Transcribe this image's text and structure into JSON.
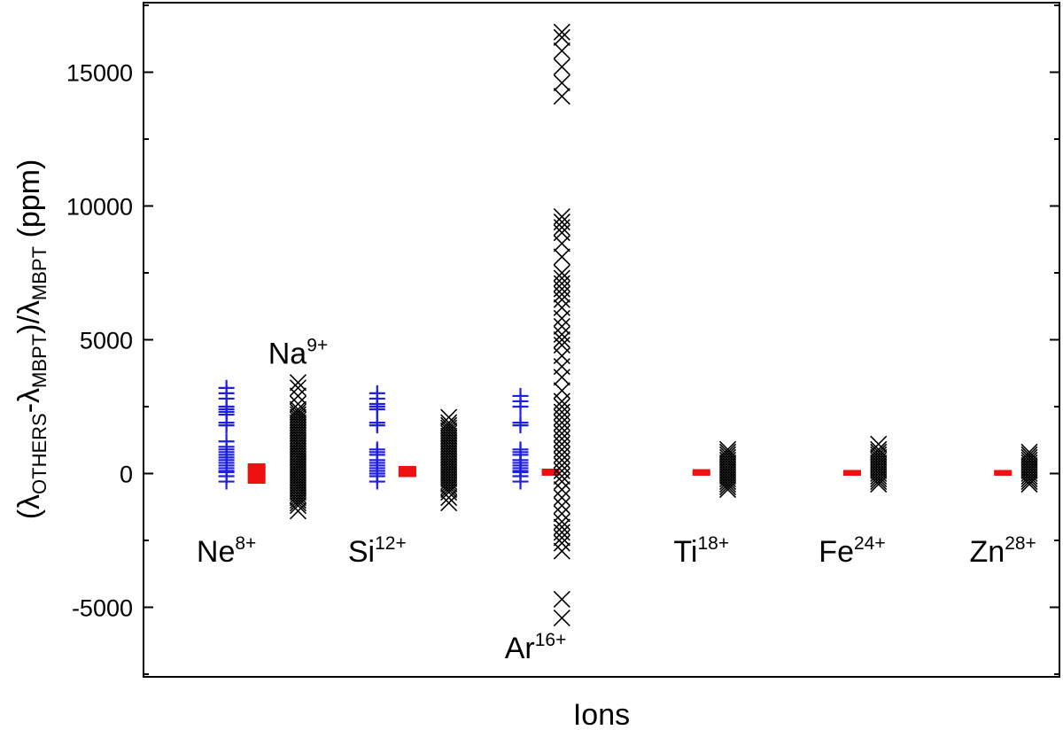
{
  "chart_data": {
    "type": "scatter",
    "title": "",
    "xlabel": "Ions",
    "ylabel": {
      "open": "(",
      "lambda": "λ",
      "sub_others": "OTHERS",
      "minus": "-",
      "sub_mbpt": "MBPT",
      "close_div": ")/",
      "unit": " (ppm)"
    },
    "ylim": [
      -7600,
      17600
    ],
    "yticks": [
      -5000,
      0,
      5000,
      10000,
      15000
    ],
    "ytick_labels": [
      "-5000",
      "0",
      "5000",
      "10000",
      "15000"
    ],
    "x_ticks": false,
    "grid": false,
    "legend": "none",
    "ion_labels": [
      {
        "id": "ne",
        "base": "Ne",
        "sup": "8+",
        "x": 1.1,
        "y": -2900
      },
      {
        "id": "na",
        "base": "Na",
        "sup": "9+",
        "x": 2.05,
        "y": 4500
      },
      {
        "id": "si",
        "base": "Si",
        "sup": "12+",
        "x": 3.1,
        "y": -2900
      },
      {
        "id": "ar",
        "base": "Ar",
        "sup": "16+",
        "x": 5.2,
        "y": -6500
      },
      {
        "id": "ti",
        "base": "Ti",
        "sup": "18+",
        "x": 7.4,
        "y": -2900
      },
      {
        "id": "fe",
        "base": "Fe",
        "sup": "24+",
        "x": 9.4,
        "y": -2900
      },
      {
        "id": "zn",
        "base": "Zn",
        "sup": "28+",
        "x": 11.4,
        "y": -2900
      }
    ],
    "series": [
      {
        "marker": "plus",
        "color": "#1f1fe0",
        "groups": [
          {
            "x": 1.1,
            "values": [
              3200,
              3000,
              2800,
              2500,
              2400,
              2300,
              2200,
              1900,
              1800,
              1200,
              1000,
              900,
              800,
              700,
              600,
              500,
              400,
              300,
              200,
              100,
              50,
              -100,
              -300
            ]
          },
          {
            "x": 3.1,
            "values": [
              3000,
              2800,
              2600,
              2500,
              2400,
              1900,
              1800,
              900,
              800,
              700,
              500,
              400,
              300,
              200,
              100,
              0,
              -100,
              -300
            ]
          },
          {
            "x": 5.0,
            "values": [
              2900,
              2700,
              2500,
              1900,
              1800,
              900,
              800,
              700,
              500,
              400,
              300,
              200,
              100,
              50,
              -100,
              -300
            ]
          }
        ]
      },
      {
        "marker": "bar",
        "color": "#ee1111",
        "groups": [
          {
            "x": 1.5,
            "values": [
              300,
              200,
              100,
              0,
              -100,
              -200,
              -300
            ]
          },
          {
            "x": 3.5,
            "values": [
              200,
              100,
              0,
              -50
            ]
          },
          {
            "x": 5.4,
            "values": [
              100,
              0
            ]
          },
          {
            "x": 7.4,
            "values": [
              80,
              0
            ]
          },
          {
            "x": 9.4,
            "values": [
              50,
              0
            ]
          },
          {
            "x": 11.4,
            "values": [
              50,
              0
            ]
          }
        ]
      },
      {
        "marker": "cross",
        "color": "#000000",
        "groups": [
          {
            "x": 2.05,
            "values": [
              3400,
              3200,
              2900,
              2600,
              2400,
              2300,
              2200,
              2100,
              2000,
              1900,
              1800,
              1700,
              1600,
              1500,
              1400,
              1300,
              1200,
              1100,
              1000,
              900,
              800,
              700,
              600,
              500,
              400,
              300,
              200,
              100,
              0,
              -100,
              -200,
              -300,
              -400,
              -500,
              -600,
              -700,
              -800,
              -900,
              -1000,
              -1100,
              -1200,
              -1400
            ]
          },
          {
            "x": 4.05,
            "values": [
              2100,
              1900,
              1800,
              1700,
              1600,
              1500,
              1400,
              1300,
              1200,
              1100,
              1000,
              900,
              800,
              700,
              600,
              500,
              400,
              300,
              200,
              100,
              0,
              -100,
              -200,
              -300,
              -400,
              -500,
              -600,
              -700,
              -900,
              -1100
            ]
          },
          {
            "x": 5.55,
            "values": [
              16500,
              16300,
              15800,
              15200,
              14600,
              14100,
              9600,
              9400,
              9200,
              9000,
              8600,
              8100,
              7500,
              7300,
              7100,
              6900,
              6700,
              6500,
              6200,
              5800,
              5500,
              5200,
              5000,
              4800,
              4400,
              4000,
              3600,
              3100,
              2700,
              2500,
              2300,
              2100,
              1900,
              1700,
              1500,
              1300,
              1100,
              900,
              700,
              500,
              300,
              100,
              -100,
              -300,
              -600,
              -900,
              -1200,
              -1500,
              -1800,
              -2000,
              -2200,
              -2400,
              -2600,
              -2900,
              -4700,
              -5400
            ]
          },
          {
            "x": 7.75,
            "values": [
              900,
              800,
              700,
              600,
              500,
              400,
              300,
              200,
              100,
              0,
              -100,
              -200,
              -300,
              -400,
              -500,
              -600
            ]
          },
          {
            "x": 9.75,
            "values": [
              1100,
              900,
              800,
              700,
              600,
              500,
              400,
              300,
              200,
              100,
              0,
              -100,
              -200,
              -300,
              -400
            ]
          },
          {
            "x": 11.75,
            "values": [
              800,
              700,
              600,
              500,
              400,
              300,
              200,
              100,
              0,
              -100,
              -200,
              -300,
              -400
            ]
          }
        ]
      }
    ]
  }
}
